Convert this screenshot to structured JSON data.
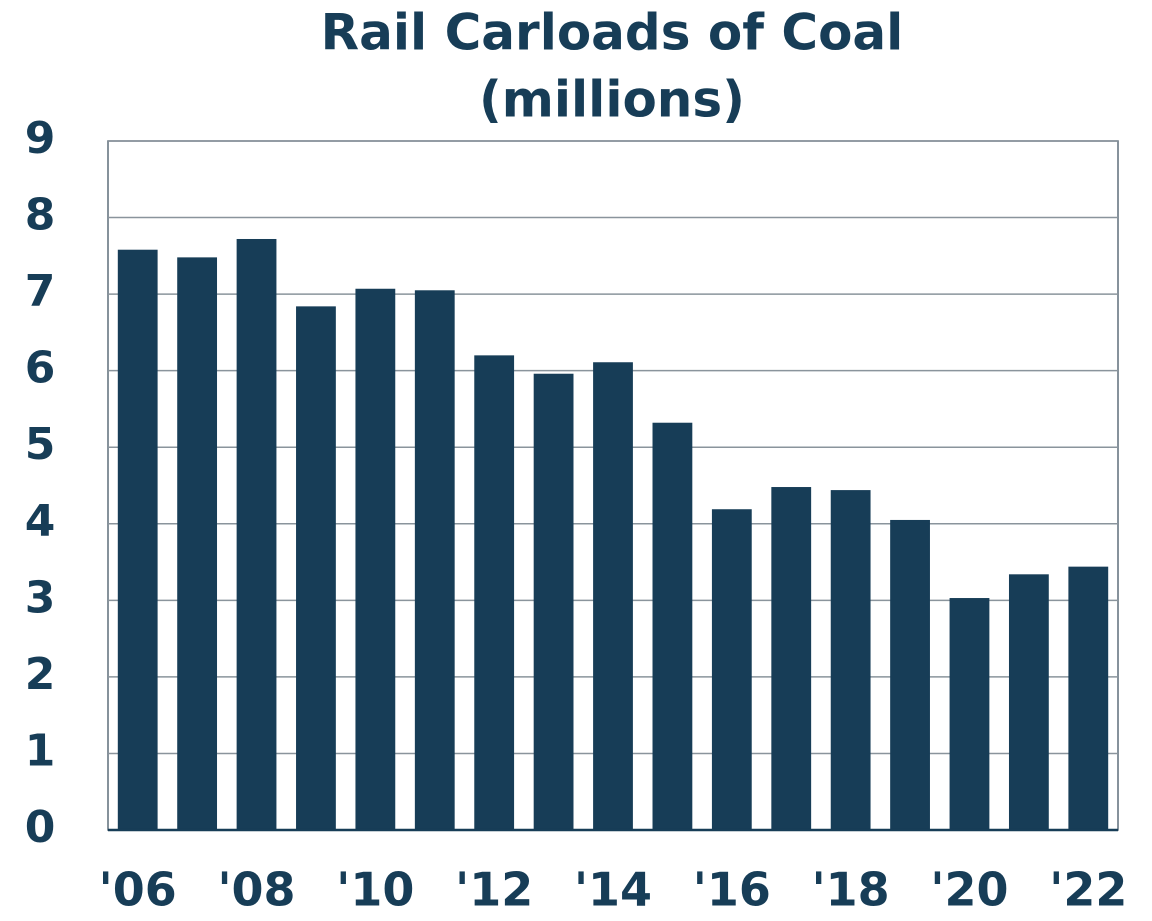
{
  "chart_data": {
    "type": "bar",
    "title": "Rail Carloads of Coal",
    "subtitle": "(millions)",
    "categories": [
      "'06",
      null,
      "'08",
      null,
      "'10",
      null,
      "'12",
      null,
      "'14",
      null,
      "'16",
      null,
      "'18",
      null,
      "'20",
      null,
      "'22"
    ],
    "values": [
      7.58,
      7.48,
      7.72,
      6.84,
      7.07,
      7.05,
      6.2,
      5.96,
      6.11,
      5.32,
      4.19,
      4.48,
      4.44,
      4.05,
      3.03,
      3.34,
      3.44
    ],
    "color": "#173d57",
    "ylim": [
      0,
      9
    ],
    "yticks": [
      0,
      1,
      2,
      3,
      4,
      5,
      6,
      7,
      8,
      9
    ],
    "grid": true
  }
}
